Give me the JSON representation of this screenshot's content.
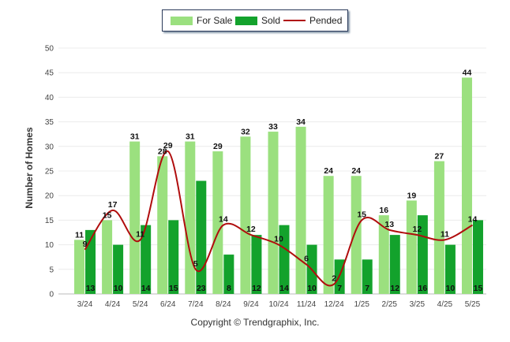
{
  "legend": {
    "for_sale": "For Sale",
    "sold": "Sold",
    "pended": "Pended"
  },
  "footer": "Copyright © Trendgraphix, Inc.",
  "chart_data": {
    "type": "bar",
    "categories": [
      "3/24",
      "4/24",
      "5/24",
      "6/24",
      "7/24",
      "8/24",
      "9/24",
      "10/24",
      "11/24",
      "12/24",
      "1/25",
      "2/25",
      "3/25",
      "4/25",
      "5/25"
    ],
    "ylabel": "Number of Homes",
    "xlabel": "",
    "ylim": [
      0,
      50
    ],
    "yticks": [
      0,
      5,
      10,
      15,
      20,
      25,
      30,
      35,
      40,
      45,
      50
    ],
    "grid": true,
    "legend_position": "top-center",
    "series": [
      {
        "name": "For Sale",
        "type": "bar",
        "color": "#9be07f",
        "values": [
          11,
          15,
          31,
          28,
          31,
          29,
          32,
          33,
          34,
          24,
          24,
          16,
          19,
          27,
          44
        ]
      },
      {
        "name": "Sold",
        "type": "bar",
        "color": "#13a22c",
        "values": [
          13,
          10,
          14,
          15,
          23,
          8,
          12,
          14,
          10,
          7,
          7,
          12,
          16,
          10,
          15
        ]
      },
      {
        "name": "Pended",
        "type": "line",
        "color": "#b00d0d",
        "values": [
          9,
          17,
          11,
          29,
          5,
          14,
          12,
          10,
          6,
          2,
          15,
          13,
          12,
          11,
          14
        ]
      }
    ]
  }
}
